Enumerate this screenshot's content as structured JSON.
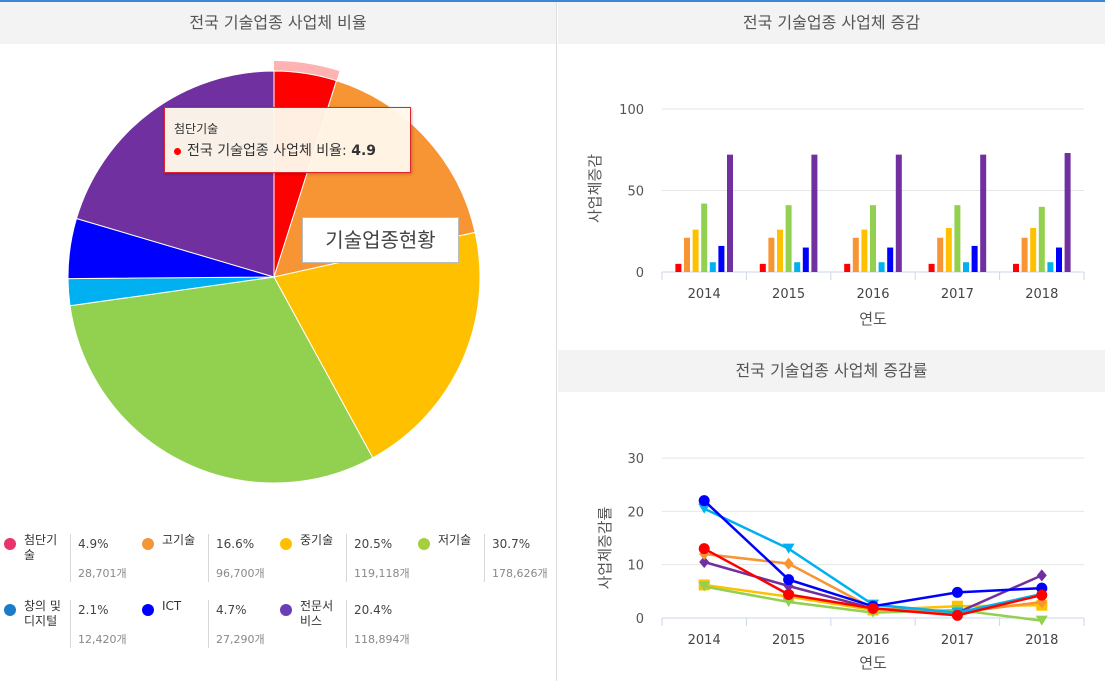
{
  "pie": {
    "title": "전국 기술업종 사업체 비율",
    "center_label": "기술업종현황",
    "tooltip": {
      "category": "첨단기술",
      "series": "전국 기술업종 사업체 비율: ",
      "value": "4.9"
    }
  },
  "legend": [
    {
      "name": "첨단기술",
      "pct": "4.9%",
      "count": "28,701개",
      "color": "#e8336b"
    },
    {
      "name": "고기술",
      "pct": "16.6%",
      "count": "96,700개",
      "color": "#f3963a"
    },
    {
      "name": "중기술",
      "pct": "20.5%",
      "count": "119,118개",
      "color": "#ffc000"
    },
    {
      "name": "저기술",
      "pct": "30.7%",
      "count": "178,626개",
      "color": "#a5cf3c"
    },
    {
      "name": "창의 및 디지털",
      "pct": "2.1%",
      "count": "12,420개",
      "color": "#1e7bc6"
    },
    {
      "name": "ICT",
      "pct": "4.7%",
      "count": "27,290개",
      "color": "#0000ff"
    },
    {
      "name": "전문서비스",
      "pct": "20.4%",
      "count": "118,894개",
      "color": "#6a3fb5"
    }
  ],
  "bar": {
    "title": "전국 기술업종 사업체 증감",
    "ylabel": "사업체증감",
    "xlabel": "연도"
  },
  "line": {
    "title": "전국 기술업종 사업체 증감률",
    "ylabel": "사업체증감률",
    "xlabel": "연도"
  },
  "chart_data": [
    {
      "type": "pie",
      "title": "전국 기술업종 사업체 비율",
      "categories": [
        "첨단기술",
        "고기술",
        "중기술",
        "저기술",
        "창의 및 디지털",
        "ICT",
        "전문서비스"
      ],
      "values": [
        4.9,
        16.6,
        20.5,
        30.7,
        2.1,
        4.7,
        20.4
      ],
      "colors": [
        "#ff0000",
        "#f79433",
        "#ffc000",
        "#92d050",
        "#00b0f0",
        "#0000ff",
        "#7030a0"
      ],
      "highlighted": "첨단기술"
    },
    {
      "type": "bar",
      "title": "전국 기술업종 사업체 증감",
      "categories": [
        "2014",
        "2015",
        "2016",
        "2017",
        "2018"
      ],
      "xlabel": "연도",
      "ylabel": "사업체증감",
      "ylim": [
        0,
        100
      ],
      "yticks": [
        0,
        50,
        100
      ],
      "series": [
        {
          "values": [
            5,
            5,
            5,
            5,
            5
          ],
          "color": "#ff0000"
        },
        {
          "values": [
            21,
            21,
            21,
            21,
            21
          ],
          "color": "#f79433"
        },
        {
          "values": [
            26,
            26,
            26,
            27,
            27
          ],
          "color": "#ffc000"
        },
        {
          "values": [
            42,
            41,
            41,
            41,
            40
          ],
          "color": "#92d050"
        },
        {
          "values": [
            6,
            6,
            6,
            6,
            6
          ],
          "color": "#00b0f0"
        },
        {
          "values": [
            16,
            15,
            15,
            16,
            15
          ],
          "color": "#0000ff"
        },
        {
          "values": [
            72,
            72,
            72,
            72,
            73
          ],
          "color": "#7030a0"
        }
      ]
    },
    {
      "type": "line",
      "title": "전국 기술업종 사업체 증감률",
      "categories": [
        "2014",
        "2015",
        "2016",
        "2017",
        "2018"
      ],
      "xlabel": "연도",
      "ylabel": "사업체증감률",
      "ylim": [
        0,
        30
      ],
      "yticks": [
        0,
        10,
        20,
        30
      ],
      "series": [
        {
          "values": [
            6.2,
            4.0,
            1.5,
            2.2,
            2.4
          ],
          "color": "#ffc000",
          "marker": "square"
        },
        {
          "values": [
            5.9,
            3.0,
            1.0,
            1.5,
            -0.5
          ],
          "color": "#92d050",
          "marker": "triangle"
        },
        {
          "values": [
            10.5,
            6.0,
            1.8,
            1.0,
            8.0
          ],
          "color": "#7030a0",
          "marker": "diamond"
        },
        {
          "values": [
            12.0,
            10.2,
            1.8,
            1.0,
            3.0
          ],
          "color": "#f79433",
          "marker": "diamond"
        },
        {
          "values": [
            20.5,
            13.0,
            2.5,
            1.0,
            4.5
          ],
          "color": "#00b0f0",
          "marker": "triangle"
        },
        {
          "values": [
            22.0,
            7.2,
            2.2,
            4.8,
            5.6
          ],
          "color": "#0000ff",
          "marker": "circle"
        },
        {
          "values": [
            13.0,
            4.4,
            1.8,
            0.5,
            4.3
          ],
          "color": "#ff0000",
          "marker": "circle"
        }
      ]
    }
  ]
}
